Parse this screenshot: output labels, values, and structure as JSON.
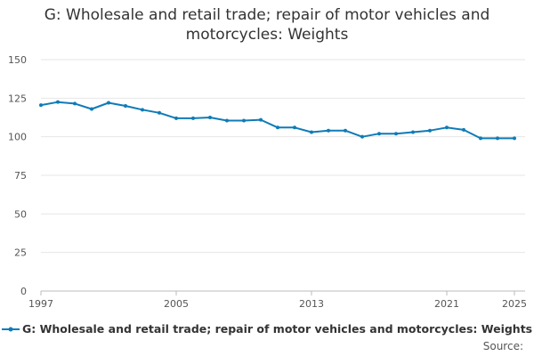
{
  "chart_data": {
    "type": "line",
    "title": "G: Wholesale and retail trade; repair of motor vehicles and motorcycles: Weights",
    "xlabel": "",
    "ylabel": "",
    "xlim": [
      1997,
      2025
    ],
    "ylim": [
      0,
      150
    ],
    "yticks": [
      0,
      25,
      50,
      75,
      100,
      125,
      150
    ],
    "xticks": [
      1997,
      2005,
      2013,
      2021,
      2025
    ],
    "grid": true,
    "legend_position": "bottom",
    "series": [
      {
        "name": "G: Wholesale and retail trade; repair of motor vehicles and motorcycles: Weights",
        "color": "#0f7bb8",
        "x": [
          1997,
          1998,
          1999,
          2000,
          2001,
          2002,
          2003,
          2004,
          2005,
          2006,
          2007,
          2008,
          2009,
          2010,
          2011,
          2012,
          2013,
          2014,
          2015,
          2016,
          2017,
          2018,
          2019,
          2020,
          2021,
          2022,
          2023,
          2024,
          2025
        ],
        "values": [
          120.5,
          122.5,
          121.5,
          118,
          122,
          120,
          117.5,
          115.5,
          112,
          112,
          112.5,
          110.5,
          110.5,
          111,
          106,
          106,
          103,
          104,
          104,
          100,
          102,
          102,
          103,
          104,
          106,
          104.5,
          99,
          99,
          99
        ]
      }
    ]
  },
  "legend": {
    "label": "G: Wholesale and retail trade; repair of motor vehicles and motorcycles: Weights"
  },
  "source_label": "Source:"
}
